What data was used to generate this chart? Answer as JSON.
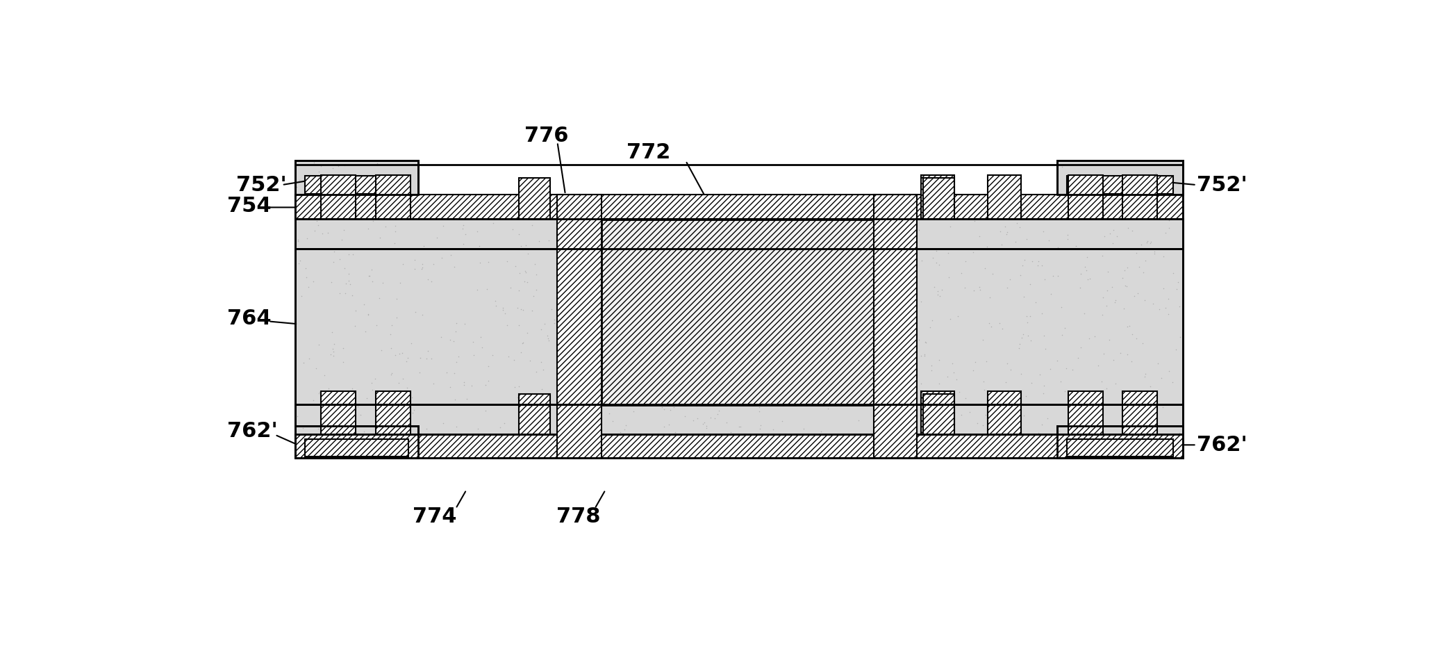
{
  "bg_color": "#ffffff",
  "line_color": "#000000",
  "figsize": [
    20.66,
    9.34
  ],
  "dpi": 100,
  "labels": {
    "752L": "752'",
    "754": "754",
    "764": "764",
    "762L": "762'",
    "776": "776",
    "772": "772",
    "774": "774",
    "778": "778",
    "752R": "752'",
    "762R": "762'"
  }
}
